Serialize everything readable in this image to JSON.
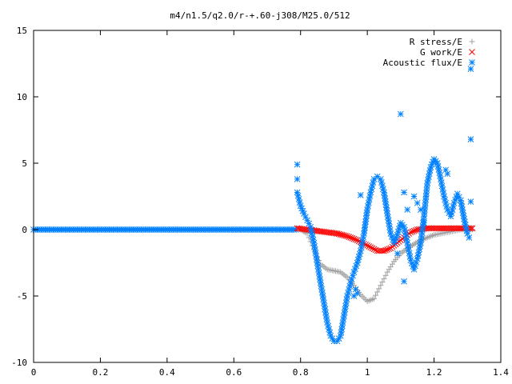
{
  "chart_data": {
    "type": "scatter",
    "title": "m4/n1.5/q2.0/r-+.60-j308/M25.0/512",
    "xlabel": "",
    "ylabel": "",
    "xlim": [
      0,
      1.4
    ],
    "ylim": [
      -10,
      15
    ],
    "x_ticks": [
      0,
      0.2,
      0.4,
      0.6,
      0.8,
      1,
      1.2,
      1.4
    ],
    "x_tick_labels": [
      "0",
      "0.2",
      "0.4",
      "0.6",
      "0.8",
      "1",
      "1.2",
      "1.4"
    ],
    "y_ticks": [
      -10,
      -5,
      0,
      5,
      10,
      15
    ],
    "y_tick_labels": [
      "-10",
      "-5",
      "0",
      "5",
      "10",
      "15"
    ],
    "grid": false,
    "legend_position": "top-right",
    "series": [
      {
        "name": "R stress/E",
        "marker": "plus",
        "color": "#a0a0a0",
        "points": [
          [
            0.8,
            0.0
          ],
          [
            0.82,
            -0.3
          ],
          [
            0.84,
            -1.5
          ],
          [
            0.86,
            -2.6
          ],
          [
            0.88,
            -3.0
          ],
          [
            0.9,
            -3.1
          ],
          [
            0.92,
            -3.2
          ],
          [
            0.94,
            -3.6
          ],
          [
            0.96,
            -4.2
          ],
          [
            0.98,
            -4.9
          ],
          [
            1.0,
            -5.4
          ],
          [
            1.02,
            -5.2
          ],
          [
            1.04,
            -4.2
          ],
          [
            1.06,
            -3.2
          ],
          [
            1.08,
            -2.4
          ],
          [
            1.1,
            -1.8
          ],
          [
            1.12,
            -1.4
          ],
          [
            1.14,
            -1.1
          ],
          [
            1.16,
            -0.8
          ],
          [
            1.18,
            -0.6
          ],
          [
            1.2,
            -0.4
          ],
          [
            1.22,
            -0.3
          ],
          [
            1.24,
            -0.2
          ],
          [
            1.26,
            -0.1
          ],
          [
            1.28,
            0.0
          ],
          [
            1.3,
            0.0
          ],
          [
            1.315,
            0.0
          ]
        ]
      },
      {
        "name": "G work/E",
        "marker": "cross",
        "color": "#ff0000",
        "points": [
          [
            0.79,
            0.1
          ],
          [
            0.82,
            0.0
          ],
          [
            0.85,
            -0.1
          ],
          [
            0.88,
            -0.2
          ],
          [
            0.91,
            -0.3
          ],
          [
            0.94,
            -0.5
          ],
          [
            0.97,
            -0.8
          ],
          [
            1.0,
            -1.2
          ],
          [
            1.03,
            -1.6
          ],
          [
            1.05,
            -1.6
          ],
          [
            1.07,
            -1.4
          ],
          [
            1.09,
            -1.0
          ],
          [
            1.11,
            -0.6
          ],
          [
            1.13,
            -0.2
          ],
          [
            1.15,
            0.0
          ],
          [
            1.18,
            0.1
          ],
          [
            1.21,
            0.1
          ],
          [
            1.24,
            0.1
          ],
          [
            1.27,
            0.1
          ],
          [
            1.3,
            0.1
          ],
          [
            1.315,
            0.1
          ]
        ]
      },
      {
        "name": "Acoustic flux/E",
        "marker": "star",
        "color": "#0080ff",
        "points": [
          [
            0.79,
            4.9
          ],
          [
            0.79,
            3.8
          ],
          [
            0.79,
            2.8
          ],
          [
            0.8,
            1.8
          ],
          [
            0.81,
            1.2
          ],
          [
            0.82,
            0.7
          ],
          [
            0.83,
            0.2
          ],
          [
            0.84,
            -1.0
          ],
          [
            0.85,
            -2.5
          ],
          [
            0.86,
            -4.0
          ],
          [
            0.87,
            -5.5
          ],
          [
            0.88,
            -7.0
          ],
          [
            0.89,
            -8.0
          ],
          [
            0.9,
            -8.4
          ],
          [
            0.91,
            -8.4
          ],
          [
            0.92,
            -8.0
          ],
          [
            0.93,
            -6.5
          ],
          [
            0.94,
            -5.0
          ],
          [
            0.95,
            -4.0
          ],
          [
            0.96,
            -3.2
          ],
          [
            0.97,
            -2.5
          ],
          [
            0.98,
            -1.6
          ],
          [
            0.99,
            -0.3
          ],
          [
            1.0,
            1.5
          ],
          [
            1.01,
            2.8
          ],
          [
            1.02,
            3.8
          ],
          [
            1.03,
            4.0
          ],
          [
            1.04,
            3.8
          ],
          [
            1.05,
            2.8
          ],
          [
            1.06,
            1.2
          ],
          [
            1.07,
            -0.3
          ],
          [
            1.08,
            -1.0
          ],
          [
            1.09,
            -0.4
          ],
          [
            1.1,
            0.5
          ],
          [
            1.11,
            0.2
          ],
          [
            1.12,
            -1.0
          ],
          [
            1.13,
            -2.3
          ],
          [
            1.14,
            -3.0
          ],
          [
            1.15,
            -2.2
          ],
          [
            1.16,
            -1.0
          ],
          [
            1.17,
            1.0
          ],
          [
            1.18,
            3.5
          ],
          [
            1.19,
            4.7
          ],
          [
            1.2,
            5.3
          ],
          [
            1.21,
            5.0
          ],
          [
            1.22,
            3.8
          ],
          [
            1.23,
            2.5
          ],
          [
            1.24,
            1.5
          ],
          [
            1.25,
            1.0
          ],
          [
            1.26,
            2.0
          ],
          [
            1.27,
            2.7
          ],
          [
            1.28,
            2.2
          ],
          [
            1.29,
            0.8
          ],
          [
            1.3,
            -0.3
          ],
          [
            1.305,
            -0.6
          ],
          [
            0.96,
            -5.0
          ],
          [
            0.965,
            -4.5
          ],
          [
            0.97,
            -4.8
          ],
          [
            0.98,
            2.6
          ],
          [
            1.1,
            8.7
          ],
          [
            1.11,
            2.8
          ],
          [
            1.12,
            1.5
          ],
          [
            1.14,
            2.5
          ],
          [
            1.15,
            2.0
          ],
          [
            1.16,
            1.5
          ],
          [
            1.11,
            -3.9
          ],
          [
            1.09,
            -1.8
          ],
          [
            1.17,
            0.5
          ],
          [
            1.235,
            4.5
          ],
          [
            1.24,
            4.2
          ],
          [
            1.31,
            12.1
          ],
          [
            1.31,
            6.8
          ],
          [
            1.31,
            2.1
          ]
        ]
      }
    ]
  }
}
